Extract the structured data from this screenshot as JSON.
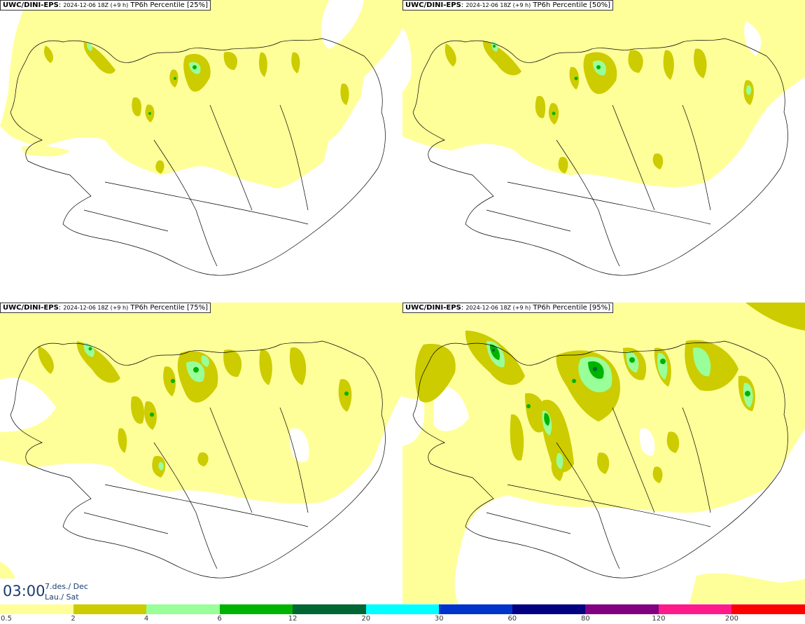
{
  "panels": [
    {
      "model": "UWC/DINI-EPS",
      "run": "2024-12-06 18Z (+9 h)",
      "field": "TP6h Percentile [25%]"
    },
    {
      "model": "UWC/DINI-EPS",
      "run": "2024-12-06 18Z (+9 h)",
      "field": "TP6h Percentile [50%]"
    },
    {
      "model": "UWC/DINI-EPS",
      "run": "2024-12-06 18Z (+9 h)",
      "field": "TP6h Percentile [75%]"
    },
    {
      "model": "UWC/DINI-EPS",
      "run": "2024-12-06 18Z (+9 h)",
      "field": "TP6h Percentile [95%]"
    }
  ],
  "valid_time": {
    "time": "03:00",
    "date_line1": "7.des./ Dec",
    "date_line2": "Lau./ Sat"
  },
  "legend": {
    "labels": [
      "0.5",
      "2",
      "4",
      "6",
      "12",
      "20",
      "30",
      "60",
      "80",
      "120",
      "200"
    ],
    "colors": [
      "#ffff99",
      "#cccc00",
      "#99ff99",
      "#00b300",
      "#006633",
      "#00ffff",
      "#0033cc",
      "#000080",
      "#800080",
      "#ff1a8c",
      "#ff0000"
    ]
  },
  "map_colors": {
    "light": "#ffff99",
    "mid": "#cccc00",
    "green_light": "#99ff99",
    "green": "#00b300",
    "dark_green": "#006633",
    "coast": "#000000"
  }
}
